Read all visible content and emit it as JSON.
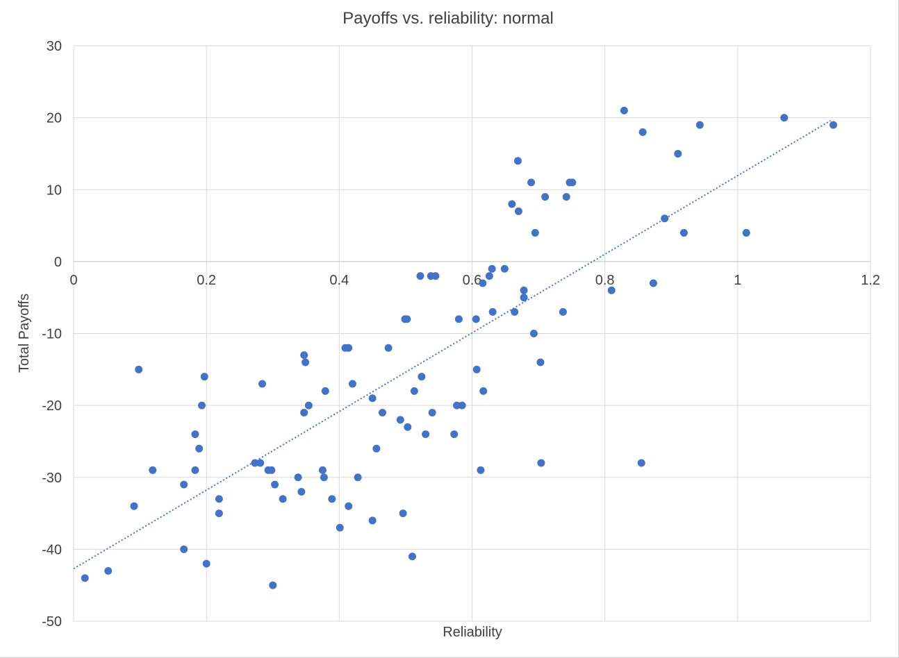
{
  "chart_data": {
    "type": "scatter",
    "title": "Payoffs vs. reliability: normal",
    "xlabel": "Reliability",
    "ylabel": "Total Payoffs",
    "xlim": [
      0,
      1.2
    ],
    "ylim": [
      -50,
      30
    ],
    "xticks": [
      0,
      0.2,
      0.4,
      0.6,
      0.8,
      1,
      1.2
    ],
    "xtick_labels": [
      "0",
      "0.2",
      "0.4",
      "0.6",
      "0.8",
      "1",
      "1.2"
    ],
    "yticks": [
      30,
      20,
      10,
      0,
      -10,
      -20,
      -30,
      -40,
      -50
    ],
    "ytick_labels": [
      "30",
      "20",
      "10",
      "0",
      "-10",
      "-20",
      "-30",
      "-40",
      "-50"
    ],
    "grid": true,
    "legend": "none",
    "point_color": "#4472c4",
    "trendline": {
      "type": "linear",
      "style": "dotted",
      "color": "#4472c4",
      "x": [
        0,
        1.14
      ],
      "y": [
        -42.7,
        19.6
      ]
    },
    "series": [
      {
        "points": [
          [
            0.017,
            -44
          ],
          [
            0.052,
            -43
          ],
          [
            0.091,
            -34
          ],
          [
            0.098,
            -15
          ],
          [
            0.119,
            -29
          ],
          [
            0.166,
            -31
          ],
          [
            0.166,
            -40
          ],
          [
            0.183,
            -24
          ],
          [
            0.183,
            -29
          ],
          [
            0.189,
            -26
          ],
          [
            0.193,
            -20
          ],
          [
            0.197,
            -16
          ],
          [
            0.2,
            -42
          ],
          [
            0.219,
            -33
          ],
          [
            0.219,
            -35
          ],
          [
            0.273,
            -28
          ],
          [
            0.281,
            -28
          ],
          [
            0.284,
            -17
          ],
          [
            0.293,
            -29
          ],
          [
            0.298,
            -29
          ],
          [
            0.3,
            -45
          ],
          [
            0.303,
            -31
          ],
          [
            0.315,
            -33
          ],
          [
            0.338,
            -30
          ],
          [
            0.343,
            -32
          ],
          [
            0.347,
            -13
          ],
          [
            0.347,
            -21
          ],
          [
            0.349,
            -14
          ],
          [
            0.354,
            -20
          ],
          [
            0.375,
            -29
          ],
          [
            0.377,
            -30
          ],
          [
            0.379,
            -18
          ],
          [
            0.389,
            -33
          ],
          [
            0.401,
            -37
          ],
          [
            0.409,
            -12
          ],
          [
            0.414,
            -12
          ],
          [
            0.414,
            -34
          ],
          [
            0.42,
            -17
          ],
          [
            0.428,
            -30
          ],
          [
            0.45,
            -19
          ],
          [
            0.45,
            -36
          ],
          [
            0.456,
            -26
          ],
          [
            0.465,
            -21
          ],
          [
            0.474,
            -12
          ],
          [
            0.492,
            -22
          ],
          [
            0.496,
            -35
          ],
          [
            0.499,
            -8
          ],
          [
            0.502,
            -8
          ],
          [
            0.503,
            -23
          ],
          [
            0.51,
            -41
          ],
          [
            0.513,
            -18
          ],
          [
            0.522,
            -2
          ],
          [
            0.524,
            -16
          ],
          [
            0.53,
            -24
          ],
          [
            0.538,
            -2
          ],
          [
            0.54,
            -21
          ],
          [
            0.545,
            -2
          ],
          [
            0.573,
            -24
          ],
          [
            0.577,
            -20
          ],
          [
            0.58,
            -8
          ],
          [
            0.585,
            -20
          ],
          [
            0.606,
            -8
          ],
          [
            0.607,
            -15
          ],
          [
            0.613,
            -29
          ],
          [
            0.616,
            -3
          ],
          [
            0.617,
            -18
          ],
          [
            0.626,
            -2
          ],
          [
            0.63,
            -1
          ],
          [
            0.631,
            -7
          ],
          [
            0.649,
            -1
          ],
          [
            0.66,
            8
          ],
          [
            0.664,
            -7
          ],
          [
            0.669,
            14
          ],
          [
            0.67,
            7
          ],
          [
            0.678,
            -4
          ],
          [
            0.678,
            -5
          ],
          [
            0.689,
            11
          ],
          [
            0.693,
            -10
          ],
          [
            0.695,
            4
          ],
          [
            0.703,
            -14
          ],
          [
            0.704,
            -28
          ],
          [
            0.71,
            9
          ],
          [
            0.737,
            -7
          ],
          [
            0.742,
            9
          ],
          [
            0.747,
            11
          ],
          [
            0.751,
            11
          ],
          [
            0.81,
            -4
          ],
          [
            0.829,
            21
          ],
          [
            0.855,
            -28
          ],
          [
            0.857,
            18
          ],
          [
            0.873,
            -3
          ],
          [
            0.89,
            6
          ],
          [
            0.91,
            15
          ],
          [
            0.919,
            4
          ],
          [
            0.943,
            19
          ],
          [
            1.013,
            4
          ],
          [
            1.07,
            20
          ],
          [
            1.144,
            19
          ]
        ]
      }
    ]
  }
}
